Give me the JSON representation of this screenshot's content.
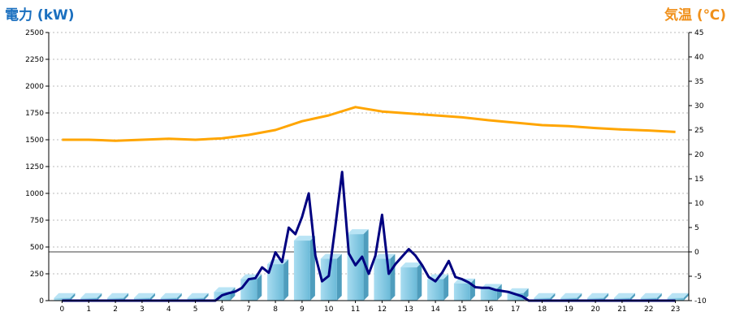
{
  "chart_data": {
    "type": "bar+line",
    "left_axis_title": "電力 (kW)",
    "right_axis_title": "気温 (℃)",
    "left_title_color": "#1a6fbf",
    "right_title_color": "#f0901a",
    "left_ylim": [
      0,
      2500
    ],
    "left_yticks": [
      "0",
      "250",
      "500",
      "750",
      "1000",
      "1250",
      "1500",
      "1750",
      "2000",
      "2250",
      "2500"
    ],
    "right_ylim": [
      -10,
      45
    ],
    "right_yticks": [
      "-10",
      "-5",
      "0",
      "5",
      "10",
      "15",
      "20",
      "25",
      "30",
      "35",
      "40",
      "45"
    ],
    "categories": [
      "0",
      "1",
      "2",
      "3",
      "4",
      "5",
      "6",
      "7",
      "8",
      "9",
      "10",
      "11",
      "12",
      "13",
      "14",
      "15",
      "16",
      "17",
      "18",
      "19",
      "20",
      "21",
      "22",
      "23"
    ],
    "grid": true,
    "bars": {
      "color": "#87ceeb",
      "values": [
        25,
        25,
        25,
        25,
        25,
        25,
        80,
        200,
        340,
        560,
        390,
        620,
        390,
        310,
        200,
        160,
        110,
        70,
        25,
        25,
        25,
        25,
        25,
        25
      ]
    },
    "power_line": {
      "color": "#000080",
      "x": [
        0,
        0.25,
        0.5,
        0.75,
        1,
        1.25,
        1.5,
        1.75,
        2,
        2.25,
        2.5,
        2.75,
        3,
        3.25,
        3.5,
        3.75,
        4,
        4.25,
        4.5,
        4.75,
        5,
        5.25,
        5.5,
        5.75,
        6,
        6.25,
        6.5,
        6.75,
        7,
        7.25,
        7.5,
        7.75,
        8,
        8.25,
        8.5,
        8.75,
        9,
        9.25,
        9.5,
        9.75,
        10,
        10.25,
        10.5,
        10.75,
        11,
        11.25,
        11.5,
        11.75,
        12,
        12.25,
        12.5,
        12.75,
        13,
        13.25,
        13.5,
        13.75,
        14,
        14.25,
        14.5,
        14.75,
        15,
        15.25,
        15.5,
        15.75,
        16,
        16.25,
        16.5,
        16.75,
        17,
        17.25,
        17.5,
        17.75,
        18,
        18.25,
        18.5,
        18.75,
        19,
        19.25,
        19.5,
        19.75,
        20,
        20.25,
        20.5,
        20.75,
        21,
        21.25,
        21.5,
        21.75,
        22,
        22.25,
        22.5,
        22.75,
        23
      ],
      "values": [
        0,
        0,
        0,
        0,
        0,
        0,
        0,
        0,
        0,
        0,
        0,
        0,
        0,
        0,
        0,
        0,
        0,
        0,
        0,
        0,
        0,
        0,
        0,
        0,
        50,
        70,
        85,
        120,
        200,
        210,
        310,
        260,
        450,
        360,
        680,
        620,
        780,
        1000,
        420,
        180,
        230,
        700,
        1200,
        440,
        330,
        410,
        250,
        420,
        800,
        250,
        340,
        410,
        480,
        420,
        330,
        220,
        180,
        260,
        370,
        220,
        200,
        170,
        125,
        120,
        120,
        100,
        90,
        80,
        60,
        40,
        0,
        0,
        0,
        0,
        0,
        0,
        0,
        0,
        0,
        0,
        0,
        0,
        0,
        0,
        0,
        0,
        0,
        0,
        0,
        0,
        0,
        0,
        0
      ]
    },
    "temperature_line": {
      "color": "#ffa500",
      "x": [
        0,
        1,
        2,
        3,
        4,
        5,
        6,
        7,
        8,
        9,
        10,
        11,
        12,
        13,
        14,
        15,
        16,
        17,
        18,
        19,
        20,
        21,
        22,
        23
      ],
      "values": [
        23,
        23,
        22.8,
        23,
        23.2,
        23,
        23.3,
        24,
        25,
        26.8,
        28,
        29.7,
        28.8,
        28.4,
        28,
        27.6,
        27,
        26.5,
        26,
        25.8,
        25.4,
        25.1,
        24.9,
        24.6
      ]
    }
  }
}
